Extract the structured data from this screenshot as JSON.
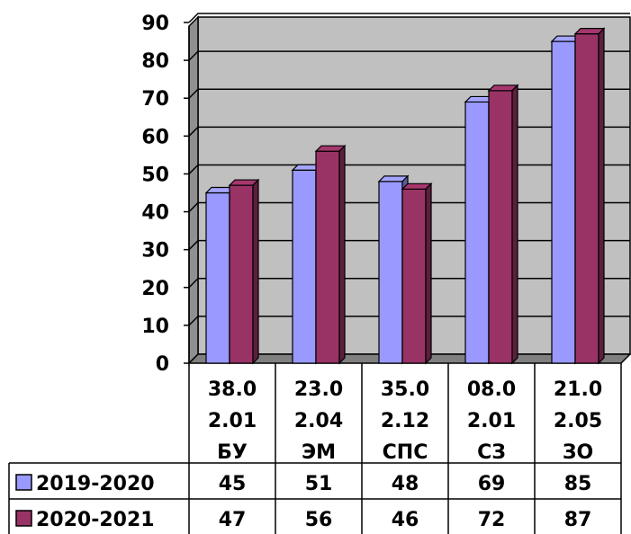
{
  "chart_data": {
    "type": "bar",
    "categories": [
      [
        "38.0",
        "2.01",
        "БУ"
      ],
      [
        "23.0",
        "2.04",
        "ЭМ"
      ],
      [
        "35.0",
        "2.12",
        "СПС"
      ],
      [
        "08.0",
        "2.01",
        "СЗ"
      ],
      [
        "21.0",
        "2.05",
        "ЗО"
      ]
    ],
    "series": [
      {
        "name": "2019-2020",
        "values": [
          45,
          51,
          48,
          69,
          85
        ],
        "color": "#9999ff"
      },
      {
        "name": "2020-2021",
        "values": [
          47,
          56,
          46,
          72,
          87
        ],
        "color": "#993366"
      }
    ],
    "ylim": [
      0,
      90
    ],
    "yticks": [
      0,
      10,
      20,
      30,
      40,
      50,
      60,
      70,
      80,
      90
    ],
    "grid": true,
    "legend": "data-table",
    "style": "3d-clustered"
  }
}
